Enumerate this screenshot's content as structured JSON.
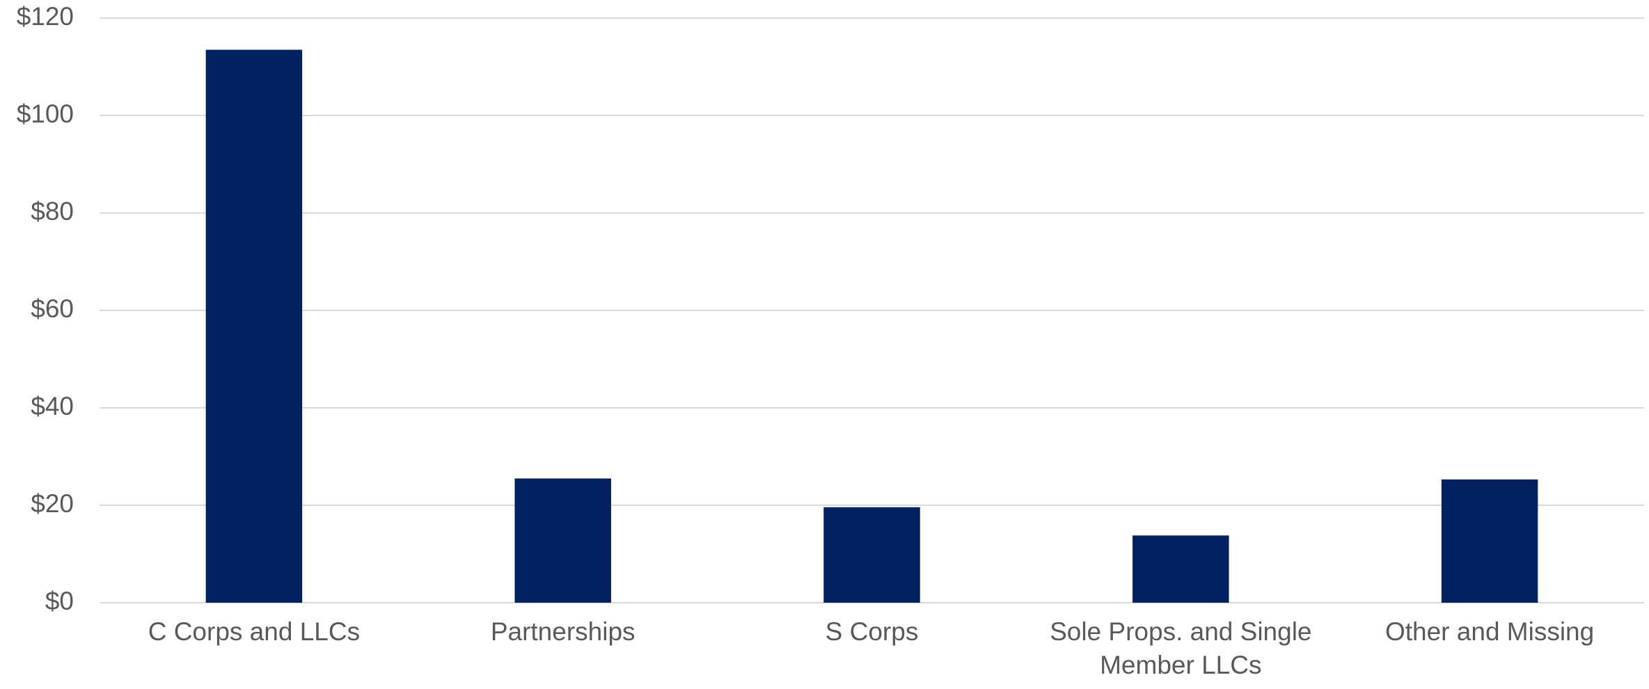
{
  "chart_data": {
    "type": "bar",
    "categories": [
      "C Corps and LLCs",
      "Partnerships",
      "S Corps",
      "Sole Props. and Single Member LLCs",
      "Other and Missing"
    ],
    "values": [
      113.5,
      25.5,
      19.6,
      13.8,
      25.3
    ],
    "color": "#002060",
    "ylim": [
      0,
      120
    ],
    "yticks": [
      {
        "value": 0,
        "label": "$0"
      },
      {
        "value": 20,
        "label": "$20"
      },
      {
        "value": 40,
        "label": "$40"
      },
      {
        "value": 60,
        "label": "$60"
      },
      {
        "value": 80,
        "label": "$80"
      },
      {
        "value": 100,
        "label": "$100"
      },
      {
        "value": 120,
        "label": "$120"
      }
    ],
    "grid": true
  }
}
